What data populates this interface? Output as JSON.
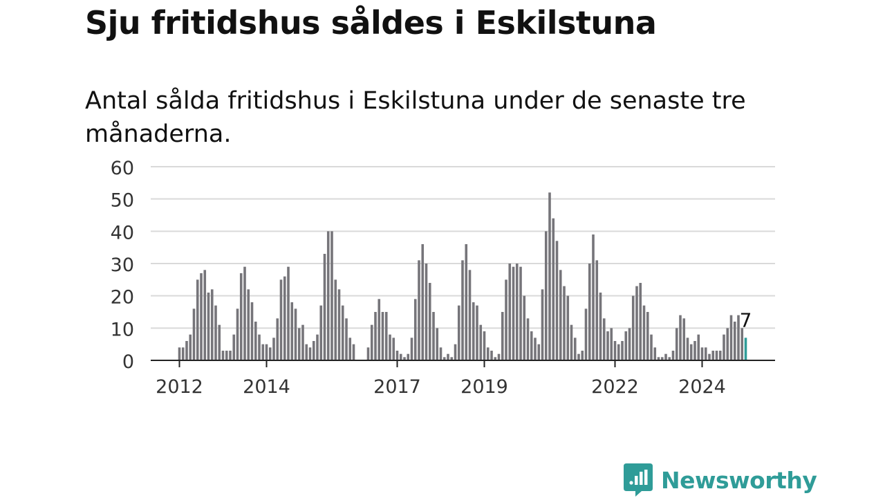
{
  "title": "Sju fritidshus såldes i Eskilstuna",
  "subtitle": "Antal sålda fritidshus i Eskilstuna under de senaste tre månaderna.",
  "brand": {
    "name": "Newsworthy"
  },
  "colors": {
    "bar": "#76757a",
    "highlight": "#2f9c98",
    "grid": "#d9d9d9",
    "axis": "#222222",
    "text": "#111111"
  },
  "chart_data": {
    "type": "bar",
    "x_start": "2012-01",
    "frequency": "monthly",
    "values": [
      4,
      4,
      6,
      8,
      16,
      25,
      27,
      28,
      21,
      22,
      17,
      11,
      3,
      3,
      3,
      8,
      16,
      27,
      29,
      22,
      18,
      12,
      8,
      5,
      5,
      4,
      7,
      13,
      25,
      26,
      29,
      18,
      16,
      10,
      11,
      5,
      4,
      6,
      8,
      17,
      33,
      40,
      40,
      25,
      22,
      17,
      13,
      7,
      5,
      0,
      0,
      0,
      4,
      11,
      15,
      19,
      15,
      15,
      8,
      7,
      3,
      2,
      1,
      2,
      7,
      19,
      31,
      36,
      30,
      24,
      15,
      10,
      4,
      1,
      2,
      1,
      5,
      17,
      31,
      36,
      28,
      18,
      17,
      11,
      9,
      4,
      3,
      1,
      2,
      15,
      25,
      30,
      29,
      30,
      29,
      20,
      13,
      9,
      7,
      5,
      22,
      40,
      52,
      44,
      37,
      28,
      23,
      20,
      11,
      7,
      2,
      3,
      16,
      30,
      39,
      31,
      21,
      13,
      9,
      10,
      6,
      5,
      6,
      9,
      10,
      20,
      23,
      24,
      17,
      15,
      8,
      4,
      1,
      1,
      2,
      1,
      3,
      10,
      14,
      13,
      7,
      5,
      6,
      8,
      4,
      4,
      2,
      3,
      3,
      3,
      8,
      10,
      14,
      12,
      14,
      10,
      7
    ],
    "highlight_last": true,
    "annotation": "7",
    "x_ticks": [
      "2012",
      "2014",
      "2017",
      "2019",
      "2022",
      "2024"
    ],
    "y_ticks": [
      "0",
      "10",
      "20",
      "30",
      "40",
      "50",
      "60"
    ],
    "ylim": [
      0,
      60
    ],
    "grid": true,
    "xlabel": "",
    "ylabel": ""
  }
}
